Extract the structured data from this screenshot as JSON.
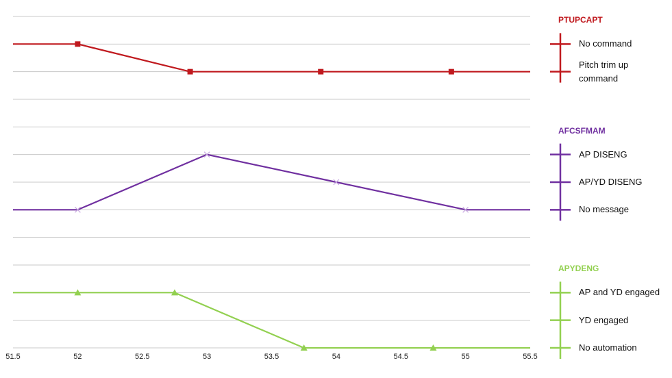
{
  "chart_data": {
    "type": "line",
    "xlim": [
      51.5,
      55.5
    ],
    "xticks": [
      51.5,
      52,
      52.5,
      53,
      53.5,
      54,
      54.5,
      55,
      55.5
    ],
    "ylim": [
      0,
      12
    ],
    "yticks": [
      0,
      1,
      2,
      3,
      4,
      5,
      6,
      7,
      8,
      9,
      10,
      11,
      12
    ],
    "grid": true,
    "series": [
      {
        "name": "PTUPCAPT",
        "color": "#c0191e",
        "marker": "square",
        "x": [
          51.5,
          52,
          52.87,
          53.88,
          54.89,
          55.5
        ],
        "values": [
          11,
          11,
          10,
          10,
          10,
          10
        ],
        "levels": [
          {
            "value": 11,
            "label": "No command"
          },
          {
            "value": 10,
            "label": "Pitch trim up command"
          }
        ]
      },
      {
        "name": "AFCSFMAM",
        "color": "#7030a0",
        "marker": "x",
        "x": [
          51.5,
          52,
          53,
          54,
          55,
          55.5
        ],
        "values": [
          5,
          5,
          7,
          6,
          5,
          5
        ],
        "levels": [
          {
            "value": 7,
            "label": "AP DISENG"
          },
          {
            "value": 6,
            "label": "AP/YD DISENG"
          },
          {
            "value": 5,
            "label": "No message"
          }
        ]
      },
      {
        "name": "APYDENG",
        "color": "#92d050",
        "marker": "triangle",
        "x": [
          51.5,
          52,
          52.75,
          53.75,
          54.75,
          55.5
        ],
        "values": [
          2,
          2,
          2,
          0,
          0,
          0
        ],
        "levels": [
          {
            "value": 2,
            "label": "AP and YD engaged"
          },
          {
            "value": 1,
            "label": "YD engaged"
          },
          {
            "value": 0,
            "label": "No automation"
          }
        ]
      }
    ]
  }
}
